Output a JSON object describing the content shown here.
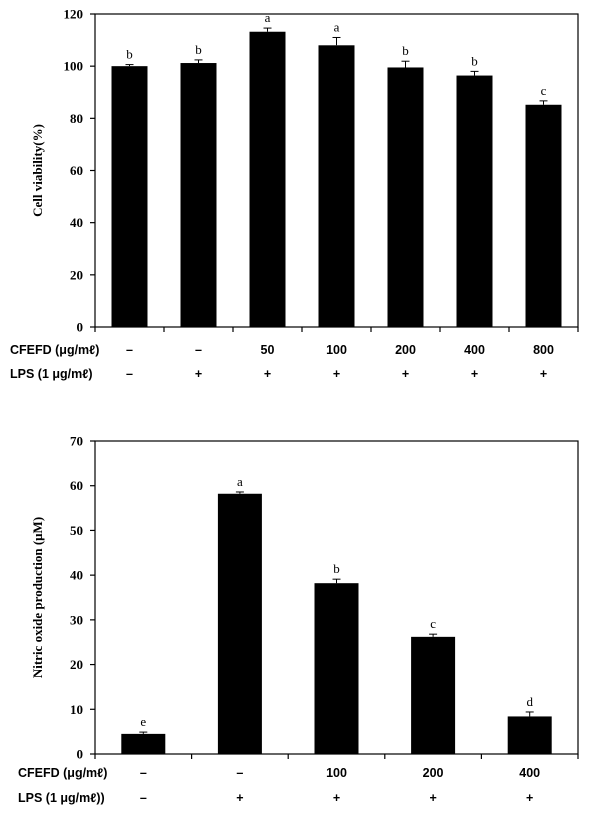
{
  "chart_data": [
    {
      "type": "bar",
      "ylabel": "Cell viability(%)",
      "ylim": [
        0,
        120
      ],
      "yticks": [
        "0",
        "20",
        "40",
        "60",
        "80",
        "100",
        "120"
      ],
      "values": [
        100,
        101.2,
        113.2,
        108,
        99.5,
        96.4,
        85.2
      ],
      "errors": [
        0.6,
        1.2,
        1.4,
        3.0,
        2.4,
        1.6,
        1.5
      ],
      "significance": [
        "b",
        "b",
        "a",
        "a",
        "b",
        "b",
        "c"
      ],
      "rows": [
        {
          "label": "CFEFD (μg/mℓ)",
          "cells": [
            "–",
            "–",
            "50",
            "100",
            "200",
            "400",
            "800"
          ]
        },
        {
          "label": "LPS (1 μg/mℓ)",
          "cells": [
            "–",
            "+",
            "+",
            "+",
            "+",
            "+",
            "+"
          ]
        }
      ]
    },
    {
      "type": "bar",
      "ylabel": "Nitric oxide production (μM)",
      "ylim": [
        0,
        70
      ],
      "yticks": [
        "0",
        "10",
        "20",
        "30",
        "40",
        "50",
        "60",
        "70"
      ],
      "values": [
        4.5,
        58.2,
        38.2,
        26.2,
        8.4
      ],
      "errors": [
        0.4,
        0.4,
        0.9,
        0.6,
        1.0
      ],
      "significance": [
        "e",
        "a",
        "b",
        "c",
        "d"
      ],
      "rows": [
        {
          "label": "CFEFD (μg/mℓ)",
          "cells": [
            "–",
            "–",
            "100",
            "200",
            "400"
          ]
        },
        {
          "label": "LPS (1 μg/mℓ))",
          "cells": [
            "–",
            "+",
            "+",
            "+",
            "+"
          ]
        }
      ]
    }
  ]
}
